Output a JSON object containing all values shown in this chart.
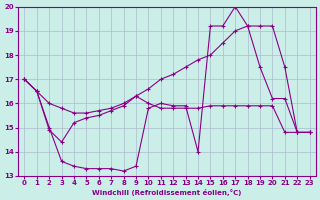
{
  "xlabel": "Windchill (Refroidissement éolien,°C)",
  "bg_color": "#cceee8",
  "grid_color": "#aabbcc",
  "line_color": "#880088",
  "xlim": [
    -0.5,
    23.5
  ],
  "ylim": [
    13,
    20
  ],
  "yticks": [
    13,
    14,
    15,
    16,
    17,
    18,
    19,
    20
  ],
  "xticks": [
    0,
    1,
    2,
    3,
    4,
    5,
    6,
    7,
    8,
    9,
    10,
    11,
    12,
    13,
    14,
    15,
    16,
    17,
    18,
    19,
    20,
    21,
    22,
    23
  ],
  "line1_x": [
    0,
    1,
    2,
    3,
    4,
    5,
    6,
    7,
    8,
    9,
    10,
    11,
    12,
    13,
    14,
    15,
    16,
    17,
    18,
    19,
    20,
    21,
    22,
    23
  ],
  "line1_y": [
    17.0,
    16.5,
    16.0,
    15.8,
    15.6,
    15.6,
    15.7,
    15.8,
    16.0,
    16.3,
    16.6,
    17.0,
    17.2,
    17.5,
    17.8,
    18.0,
    18.5,
    19.0,
    19.2,
    19.2,
    19.2,
    17.5,
    14.8,
    14.8
  ],
  "line2_x": [
    0,
    1,
    2,
    3,
    4,
    5,
    6,
    7,
    8,
    9,
    10,
    11,
    12,
    13,
    14,
    15,
    16,
    17,
    18,
    19,
    20,
    21,
    22,
    23
  ],
  "line2_y": [
    17.0,
    16.5,
    14.9,
    14.4,
    15.2,
    15.4,
    15.5,
    15.7,
    15.9,
    16.3,
    16.0,
    15.8,
    15.8,
    15.8,
    15.8,
    15.9,
    15.9,
    15.9,
    15.9,
    15.9,
    15.9,
    14.8,
    14.8,
    14.8
  ],
  "line3_x": [
    0,
    1,
    2,
    3,
    4,
    5,
    6,
    7,
    8,
    9,
    10,
    11,
    12,
    13,
    14,
    15,
    16,
    17,
    18,
    19,
    20,
    21,
    22,
    23
  ],
  "line3_y": [
    17.0,
    16.5,
    15.0,
    13.6,
    13.4,
    13.3,
    13.3,
    13.3,
    13.2,
    13.4,
    15.8,
    16.0,
    15.9,
    15.9,
    14.0,
    19.2,
    19.2,
    20.0,
    19.2,
    17.5,
    16.2,
    16.2,
    14.8,
    14.8
  ]
}
